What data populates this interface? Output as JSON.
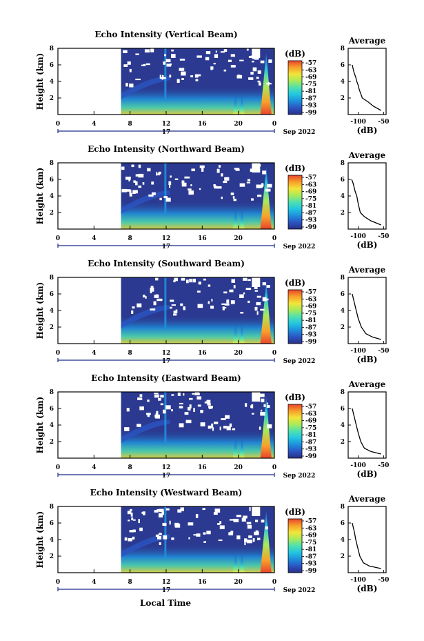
{
  "figure": {
    "date_label": "Sep 2022",
    "day_label": "17",
    "xlabel": "Local Time",
    "ylabel": "Height (km)",
    "colorbar_unit": "(dB)",
    "colorbar_ticks": [
      "-57",
      "-63",
      "-69",
      "-75",
      "-81",
      "-87",
      "-93",
      "-99"
    ],
    "average_title": "Average",
    "average_xlabel": "(dB)",
    "average_xticks": [
      "-100",
      "-50"
    ],
    "time_ticks": [
      "0",
      "4",
      "8",
      "12",
      "16",
      "20",
      "0"
    ],
    "height_ticks": [
      "2",
      "4",
      "6",
      "8"
    ]
  },
  "colors": {
    "background": "#ffffff",
    "field_low": "#2b3990",
    "colormap": [
      "#2a2f86",
      "#2b55c2",
      "#1f8fdc",
      "#22c6e0",
      "#4fe0b0",
      "#a7ea5a",
      "#f2e53a",
      "#f8a02a",
      "#e8442c"
    ]
  },
  "chart_data": [
    {
      "type": "heatmap",
      "title": "Echo Intensity (Vertical Beam)",
      "xlabel": "Local Time",
      "ylabel": "Height (km)",
      "x_range_hours": [
        0,
        24
      ],
      "y_range_km": [
        0,
        8
      ],
      "data_start_hour": 7,
      "color_range_db": [
        -99,
        -57
      ],
      "average_profile": {
        "db": [
          -55,
          -70,
          -80,
          -92,
          -98,
          -100,
          -103,
          -105,
          -108,
          -110,
          -112
        ],
        "height_km": [
          0.5,
          1,
          1.5,
          2,
          3,
          3.5,
          4,
          4.5,
          5,
          5.5,
          6
        ]
      }
    },
    {
      "type": "heatmap",
      "title": "Echo Intensity (Northward Beam)",
      "xlabel": "Local Time",
      "ylabel": "Height (km)",
      "x_range_hours": [
        0,
        24
      ],
      "y_range_km": [
        0,
        8
      ],
      "data_start_hour": 7,
      "color_range_db": [
        -99,
        -57
      ],
      "average_profile": {
        "db": [
          -55,
          -75,
          -88,
          -96,
          -100,
          -103,
          -106,
          -110,
          -113
        ],
        "height_km": [
          0.5,
          1,
          1.5,
          2,
          3,
          4,
          4.5,
          5.5,
          6
        ]
      }
    },
    {
      "type": "heatmap",
      "title": "Echo Intensity (Southward Beam)",
      "xlabel": "Local Time",
      "ylabel": "Height (km)",
      "x_range_hours": [
        0,
        24
      ],
      "y_range_km": [
        0,
        8
      ],
      "data_start_hour": 7,
      "color_range_db": [
        -99,
        -57
      ],
      "average_profile": {
        "db": [
          -55,
          -72,
          -85,
          -94,
          -100,
          -104,
          -108,
          -112
        ],
        "height_km": [
          0.5,
          0.8,
          1.2,
          2,
          3,
          4,
          5,
          6
        ]
      }
    },
    {
      "type": "heatmap",
      "title": "Echo Intensity (Eastward Beam)",
      "xlabel": "Local Time",
      "ylabel": "Height (km)",
      "x_range_hours": [
        0,
        24
      ],
      "y_range_km": [
        0,
        8
      ],
      "data_start_hour": 7,
      "color_range_db": [
        -99,
        -57
      ],
      "average_profile": {
        "db": [
          -55,
          -75,
          -88,
          -95,
          -100,
          -104,
          -108,
          -112
        ],
        "height_km": [
          0.5,
          0.8,
          1.2,
          2,
          3,
          4,
          5,
          6
        ]
      }
    },
    {
      "type": "heatmap",
      "title": "Echo Intensity (Westward Beam)",
      "xlabel": "Local Time",
      "ylabel": "Height (km)",
      "x_range_hours": [
        0,
        24
      ],
      "y_range_km": [
        0,
        8
      ],
      "data_start_hour": 7,
      "color_range_db": [
        -99,
        -57
      ],
      "average_profile": {
        "db": [
          -55,
          -78,
          -90,
          -97,
          -101,
          -105,
          -108,
          -112
        ],
        "height_km": [
          0.5,
          0.8,
          1.2,
          2,
          3,
          4,
          5,
          6
        ]
      }
    }
  ]
}
